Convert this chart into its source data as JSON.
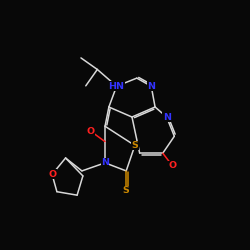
{
  "bg_color": "#080808",
  "bond_color": "#d8d8d8",
  "N_color": "#3333ff",
  "O_color": "#ff2020",
  "S_color": "#cc8800",
  "font_size": 6.8,
  "line_width": 1.1,
  "xlim": [
    0,
    10
  ],
  "ylim": [
    0,
    10
  ]
}
